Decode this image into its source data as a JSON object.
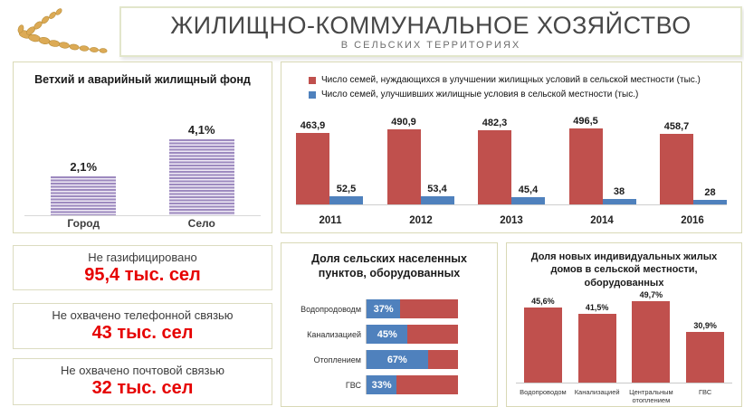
{
  "header": {
    "title": "ЖИЛИЩНО-КОММУНАЛЬНОЕ ХОЗЯЙСТВО",
    "subtitle": "В СЕЛЬСКИХ ТЕРРИТОРИЯХ",
    "logo_icon": "wheat-icon"
  },
  "colors": {
    "needing_red": "#c0504d",
    "improved_blue": "#4f81bd",
    "striped_purple": "#9d8abf",
    "stat_red_text": "#e60000",
    "panel_border": "#d9d9b6"
  },
  "chart_data": [
    {
      "id": "housing_fund",
      "type": "bar",
      "title": "Ветхий и аварийный жилищный фонд",
      "categories": [
        "Город",
        "Село"
      ],
      "values": [
        2.1,
        4.1
      ],
      "labels": [
        "2,1%",
        "4,1%"
      ],
      "ylabel": "",
      "xlabel": "",
      "unit": "%",
      "grid": false,
      "legend": "none"
    },
    {
      "id": "families_housing_conditions",
      "type": "bar",
      "categories": [
        "2011",
        "2012",
        "2013",
        "2014",
        "2016"
      ],
      "series": [
        {
          "name": "Число семей, нуждающихся в улучшении жилищных условий в сельской местности (тыс.)",
          "color": "#c0504d",
          "values": [
            463.9,
            490.9,
            482.3,
            496.5,
            458.7
          ],
          "labels": [
            "463,9",
            "490,9",
            "482,3",
            "496,5",
            "458,7"
          ]
        },
        {
          "name": "Число семей, улучшивших жилищные условия в сельской местности  (тыс.)",
          "color": "#4f81bd",
          "values": [
            52.5,
            53.4,
            45.4,
            38,
            28
          ],
          "labels": [
            "52,5",
            "53,4",
            "45,4",
            "38",
            "28"
          ]
        }
      ],
      "title": "",
      "xlabel": "",
      "ylabel": "",
      "grid": false,
      "legend": "top-left"
    },
    {
      "id": "settlements_equipped",
      "type": "bar",
      "orientation": "horizontal-stacked",
      "title": "Доля сельских населенных пунктов, оборудованных",
      "categories": [
        "Водопродоводм",
        "Канализацией",
        "Отоплением",
        "ГВС"
      ],
      "values": [
        37,
        45,
        67,
        33
      ],
      "labels": [
        "37%",
        "45%",
        "67%",
        "33%"
      ],
      "xlim": [
        0,
        100
      ],
      "unit": "%",
      "grid": false,
      "legend": "none"
    },
    {
      "id": "new_houses_equipped",
      "type": "bar",
      "title": "Доля новых индивидуальных жилых домов в сельской местности, оборудованных",
      "categories": [
        "Водопроводом",
        "Канализацией",
        "Центральным отоплением",
        "ГВС"
      ],
      "values": [
        45.6,
        41.5,
        49.7,
        30.9
      ],
      "labels": [
        "45,6%",
        "41,5%",
        "49,7%",
        "30,9%"
      ],
      "unit": "%",
      "grid": false,
      "legend": "none"
    }
  ],
  "stats": [
    {
      "label": "Не газифицировано",
      "value": "95,4 тыс. сел"
    },
    {
      "label": "Не охвачено телефонной связью",
      "value": "43 тыс. сел"
    },
    {
      "label": "Не охвачено почтовой связью",
      "value": "32 тыс. сел"
    }
  ]
}
